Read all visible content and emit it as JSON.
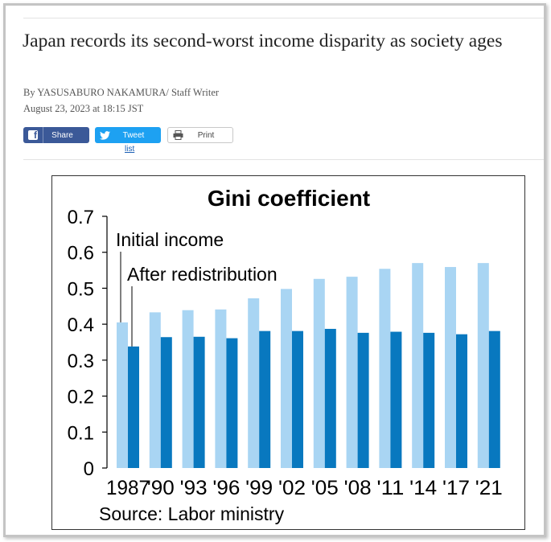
{
  "article": {
    "headline": "Japan records its second-worst income disparity as society ages",
    "byline": "By YASUSABURO NAKAMURA/ Staff Writer",
    "dateline": "August 23, 2023 at 18:15 JST"
  },
  "share": {
    "facebook_label": "Share",
    "twitter_label": "Tweet",
    "print_label": "Print",
    "list_link": "list"
  },
  "icons": {
    "facebook": "facebook-icon",
    "twitter": "twitter-bird-icon",
    "print": "printer-icon"
  },
  "colors": {
    "facebook": "#3b5998",
    "twitter": "#1da1f2",
    "initial_income": "#a9d5f3",
    "after_redistribution": "#0878bf"
  },
  "chart_data": {
    "type": "bar",
    "title": "Gini coefficient",
    "source": "Source: Labor ministry",
    "categories": [
      "1987",
      "'90",
      "'93",
      "'96",
      "'99",
      "'02",
      "'05",
      "'08",
      "'11",
      "'14",
      "'17",
      "'21"
    ],
    "series": [
      {
        "name": "Initial income",
        "values": [
          0.405,
          0.433,
          0.439,
          0.441,
          0.472,
          0.498,
          0.526,
          0.532,
          0.554,
          0.57,
          0.559,
          0.57
        ]
      },
      {
        "name": "After redistribution",
        "values": [
          0.338,
          0.364,
          0.365,
          0.361,
          0.381,
          0.381,
          0.387,
          0.376,
          0.379,
          0.376,
          0.372,
          0.381
        ]
      }
    ],
    "yticks": [
      "0",
      "0.1",
      "0.2",
      "0.3",
      "0.4",
      "0.5",
      "0.6",
      "0.7"
    ],
    "ylim": [
      0,
      0.7
    ],
    "grid": false,
    "legend": "top-left, inline labels with leader lines"
  }
}
